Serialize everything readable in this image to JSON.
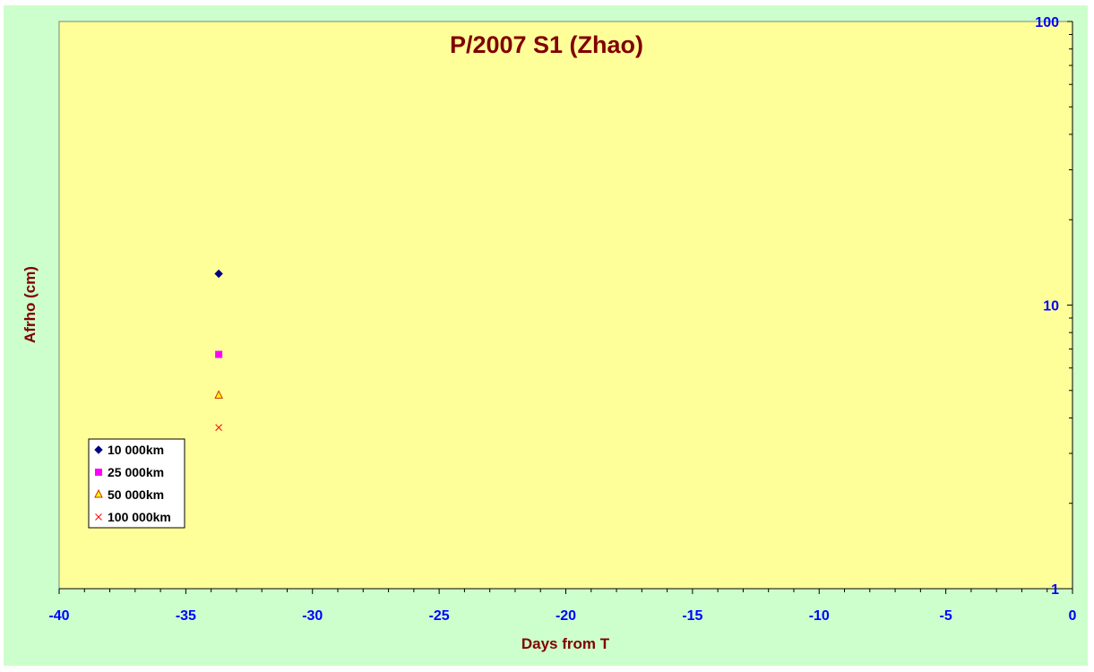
{
  "chart_data": {
    "type": "scatter",
    "title": "P/2007 S1 (Zhao)",
    "xlabel": "Days from T",
    "ylabel": "Afrho (cm)",
    "xlim": [
      -40,
      0
    ],
    "ylim": [
      1,
      100
    ],
    "yscale": "log",
    "x_ticks": [
      "-40",
      "-35",
      "-30",
      "-25",
      "-20",
      "-15",
      "-10",
      "-5",
      "0"
    ],
    "y_ticks": [
      "1",
      "10",
      "100"
    ],
    "y_axis_side": "right",
    "grid": false,
    "legend_position": "bottom-left",
    "series": [
      {
        "name": "10 000km",
        "marker": "diamond",
        "color": "#000080",
        "points": [
          [
            -33.7,
            12.9
          ]
        ]
      },
      {
        "name": "25 000km",
        "marker": "square",
        "color": "#ff00ff",
        "points": [
          [
            -33.7,
            6.7
          ]
        ]
      },
      {
        "name": "50 000km",
        "marker": "triangle",
        "color": "#ffff00",
        "stroke": "#cc3300",
        "points": [
          [
            -33.7,
            4.8
          ]
        ]
      },
      {
        "name": "100 000km",
        "marker": "x",
        "color": "#ff0000",
        "points": [
          [
            -33.7,
            3.7
          ]
        ]
      }
    ]
  },
  "colors": {
    "background": "#ccffcc",
    "plot_area": "#ffff99",
    "title_text": "#800000",
    "tick_text": "#0000ff"
  }
}
